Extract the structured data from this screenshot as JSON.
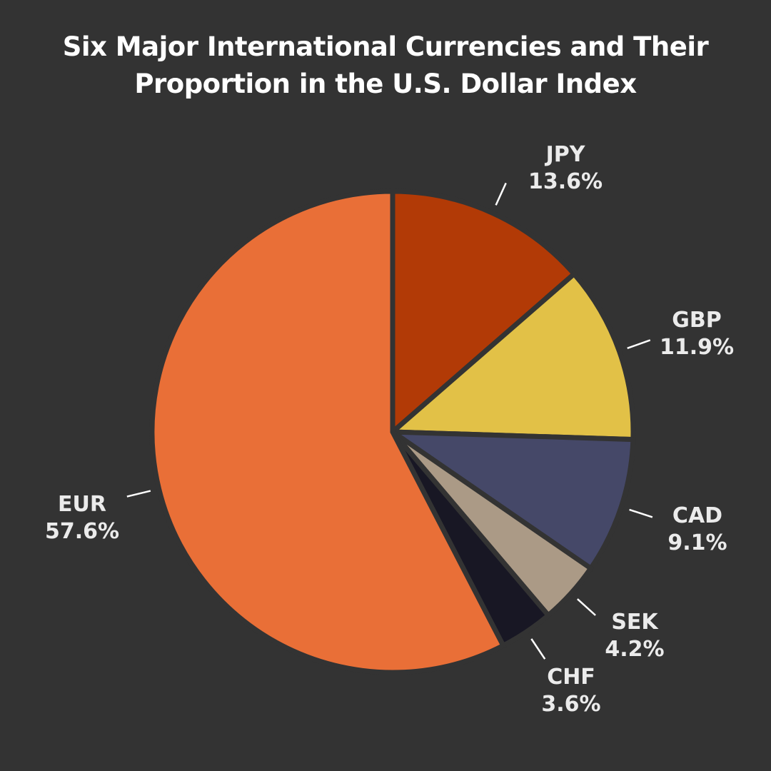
{
  "title_line1": "Six Major International Currencies and Their",
  "title_line2": "Proportion in the U.S. Dollar Index",
  "background": "#333333",
  "slices": [
    {
      "name": "JPY",
      "pct": "13.6%",
      "color": "#b23a06"
    },
    {
      "name": "GBP",
      "pct": "11.9%",
      "color": "#e2c147"
    },
    {
      "name": "CAD",
      "pct": "9.1%",
      "color": "#454868"
    },
    {
      "name": "SEK",
      "pct": "4.2%",
      "color": "#ab9a86"
    },
    {
      "name": "CHF",
      "pct": "3.6%",
      "color": "#181724"
    },
    {
      "name": "EUR",
      "pct": "57.6%",
      "color": "#e96f37"
    }
  ],
  "chart_data": {
    "type": "pie",
    "title": "Six Major International Currencies and Their Proportion in the U.S. Dollar Index",
    "categories": [
      "JPY",
      "GBP",
      "CAD",
      "SEK",
      "CHF",
      "EUR"
    ],
    "values": [
      13.6,
      11.9,
      9.1,
      4.2,
      3.6,
      57.6
    ],
    "unit": "%",
    "colors": [
      "#b23a06",
      "#e2c147",
      "#454868",
      "#ab9a86",
      "#181724",
      "#e96f37"
    ],
    "start_angle": "12 o'clock",
    "direction": "clockwise",
    "legend": "none (outside labels with leader lines)"
  }
}
